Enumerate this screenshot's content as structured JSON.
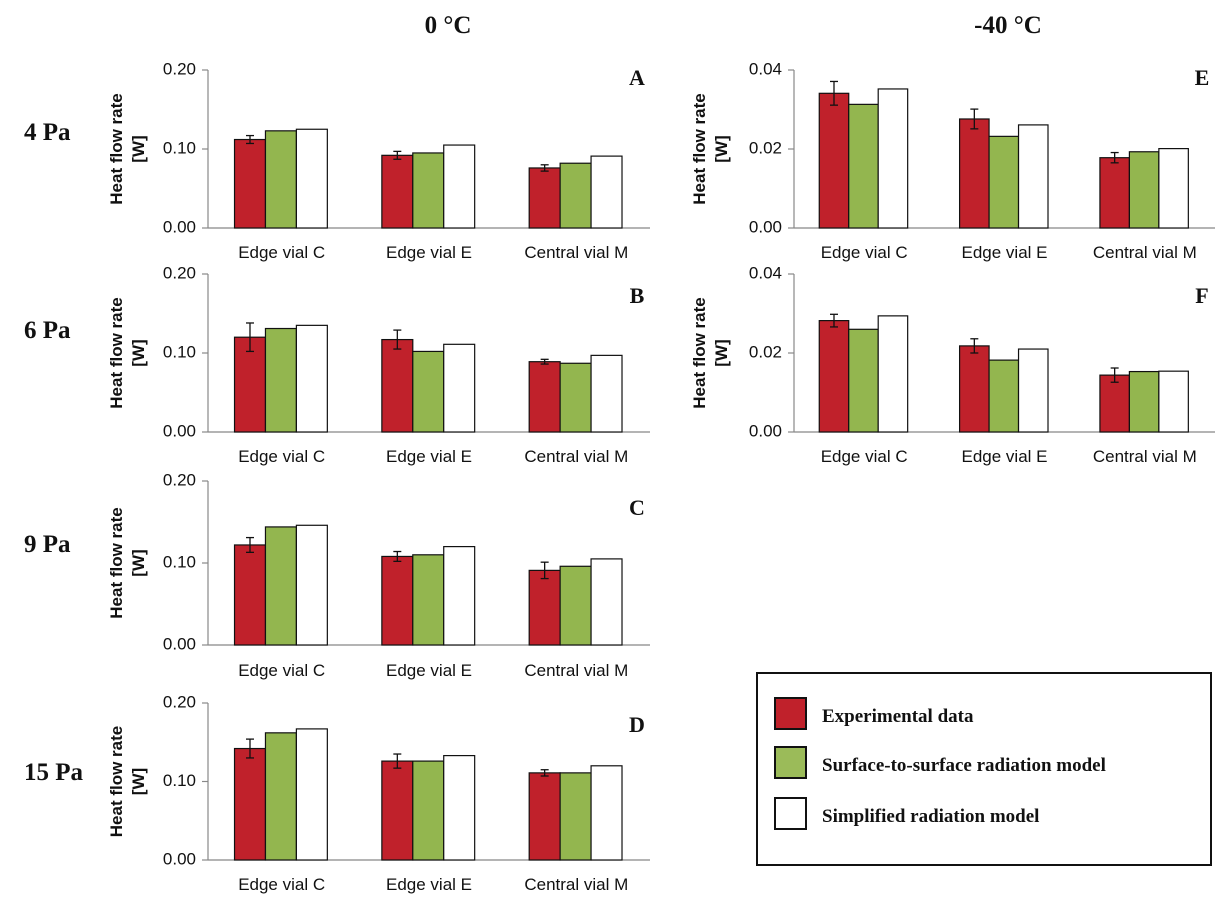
{
  "columns": [
    {
      "title": "0 °C"
    },
    {
      "title": "-40 °C"
    }
  ],
  "rows": [
    {
      "label": "4 Pa"
    },
    {
      "label": "6 Pa"
    },
    {
      "label": "9 Pa"
    },
    {
      "label": "15 Pa"
    }
  ],
  "legend": {
    "items": [
      {
        "label": "Experimental data",
        "color": "#c0212b"
      },
      {
        "label": "Surface-to-surface radiation model",
        "color": "#93b64f"
      },
      {
        "label": "Simplified radiation model",
        "color": "#ffffff"
      }
    ]
  },
  "colors": {
    "experimental": "#c0212b",
    "surface_to_surface": "#93b64f",
    "simplified": "#ffffff"
  },
  "chart_data": [
    {
      "type": "bar",
      "panel": "A",
      "ylabel": "Heat flow rate\n[W]",
      "xlabel": "",
      "ylim": [
        0,
        0.2
      ],
      "yticks": [
        "0.00",
        "0.10",
        "0.20"
      ],
      "categories": [
        "Edge vial C",
        "Edge vial E",
        "Central vial M"
      ],
      "series": [
        {
          "name": "Experimental data",
          "values": [
            0.112,
            0.092,
            0.076
          ],
          "errors": [
            0.005,
            0.005,
            0.004
          ]
        },
        {
          "name": "Surface-to-surface radiation model",
          "values": [
            0.123,
            0.095,
            0.082
          ]
        },
        {
          "name": "Simplified radiation model",
          "values": [
            0.125,
            0.105,
            0.091
          ]
        }
      ]
    },
    {
      "type": "bar",
      "panel": "B",
      "ylabel": "Heat flow rate\n[W]",
      "xlabel": "",
      "ylim": [
        0,
        0.2
      ],
      "yticks": [
        "0.00",
        "0.10",
        "0.20"
      ],
      "categories": [
        "Edge vial C",
        "Edge vial E",
        "Central vial M"
      ],
      "series": [
        {
          "name": "Experimental data",
          "values": [
            0.12,
            0.117,
            0.089
          ],
          "errors": [
            0.018,
            0.012,
            0.003
          ]
        },
        {
          "name": "Surface-to-surface radiation model",
          "values": [
            0.131,
            0.102,
            0.087
          ]
        },
        {
          "name": "Simplified radiation model",
          "values": [
            0.135,
            0.111,
            0.097
          ]
        }
      ]
    },
    {
      "type": "bar",
      "panel": "C",
      "ylabel": "Heat flow rate\n[W]",
      "xlabel": "",
      "ylim": [
        0,
        0.2
      ],
      "yticks": [
        "0.00",
        "0.10",
        "0.20"
      ],
      "categories": [
        "Edge vial C",
        "Edge vial E",
        "Central vial M"
      ],
      "series": [
        {
          "name": "Experimental data",
          "values": [
            0.122,
            0.108,
            0.091
          ],
          "errors": [
            0.009,
            0.006,
            0.01
          ]
        },
        {
          "name": "Surface-to-surface radiation model",
          "values": [
            0.144,
            0.11,
            0.096
          ]
        },
        {
          "name": "Simplified radiation model",
          "values": [
            0.146,
            0.12,
            0.105
          ]
        }
      ]
    },
    {
      "type": "bar",
      "panel": "D",
      "ylabel": "Heat flow rate\n[W]",
      "xlabel": "",
      "ylim": [
        0,
        0.2
      ],
      "yticks": [
        "0.00",
        "0.10",
        "0.20"
      ],
      "categories": [
        "Edge vial C",
        "Edge vial E",
        "Central vial M"
      ],
      "series": [
        {
          "name": "Experimental data",
          "values": [
            0.142,
            0.126,
            0.111
          ],
          "errors": [
            0.012,
            0.009,
            0.004
          ]
        },
        {
          "name": "Surface-to-surface radiation model",
          "values": [
            0.162,
            0.126,
            0.111
          ]
        },
        {
          "name": "Simplified radiation model",
          "values": [
            0.167,
            0.133,
            0.12
          ]
        }
      ]
    },
    {
      "type": "bar",
      "panel": "E",
      "ylabel": "Heat flow rate\n[W]",
      "xlabel": "",
      "ylim": [
        0,
        0.04
      ],
      "yticks": [
        "0.00",
        "0.02",
        "0.04"
      ],
      "categories": [
        "Edge vial C",
        "Edge vial E",
        "Central vial M"
      ],
      "series": [
        {
          "name": "Experimental data",
          "values": [
            0.0341,
            0.0276,
            0.0178
          ],
          "errors": [
            0.003,
            0.0025,
            0.0013
          ]
        },
        {
          "name": "Surface-to-surface radiation model",
          "values": [
            0.0313,
            0.0232,
            0.0193
          ]
        },
        {
          "name": "Simplified radiation model",
          "values": [
            0.0352,
            0.0261,
            0.0201
          ]
        }
      ]
    },
    {
      "type": "bar",
      "panel": "F",
      "ylabel": "Heat flow rate\n[W]",
      "xlabel": "",
      "ylim": [
        0,
        0.04
      ],
      "yticks": [
        "0.00",
        "0.02",
        "0.04"
      ],
      "categories": [
        "Edge vial C",
        "Edge vial E",
        "Central vial M"
      ],
      "series": [
        {
          "name": "Experimental data",
          "values": [
            0.0282,
            0.0218,
            0.0144
          ],
          "errors": [
            0.0016,
            0.0018,
            0.0018
          ]
        },
        {
          "name": "Surface-to-surface radiation model",
          "values": [
            0.026,
            0.0182,
            0.0153
          ]
        },
        {
          "name": "Simplified radiation model",
          "values": [
            0.0294,
            0.021,
            0.0154
          ]
        }
      ]
    }
  ]
}
